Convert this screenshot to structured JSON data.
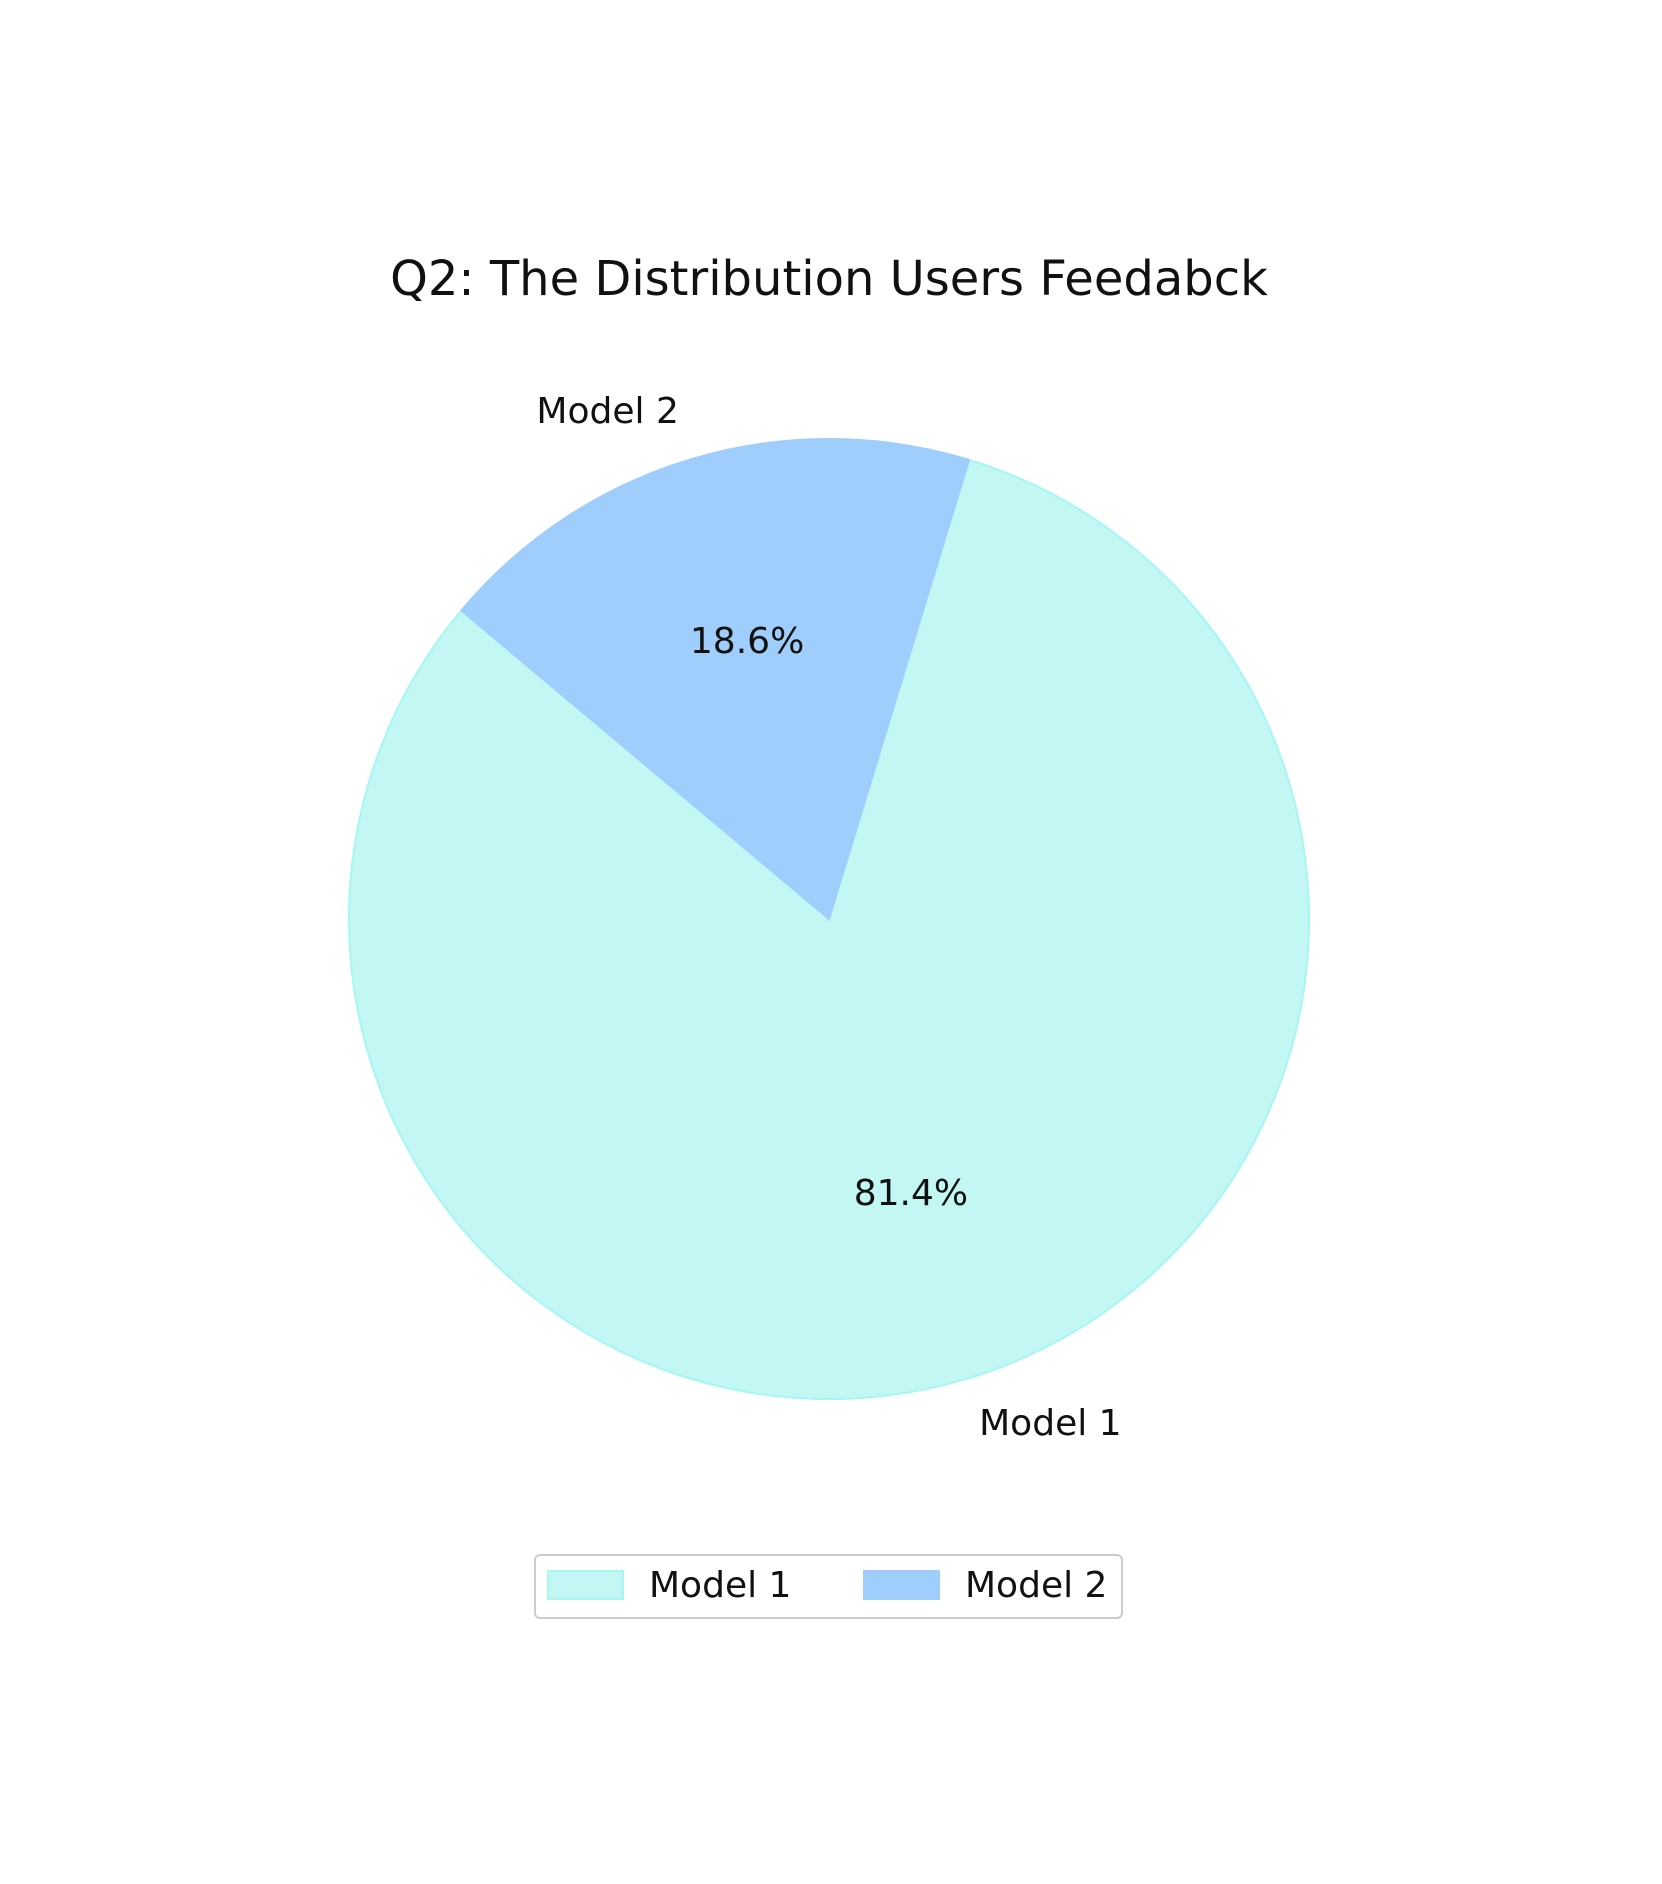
{
  "chart_data": {
    "type": "pie",
    "title": "Q2: The Distribution Users Feedabck",
    "categories": [
      "Model 1",
      "Model 2"
    ],
    "values": [
      81.4,
      18.6
    ],
    "value_labels": [
      "81.4%",
      "18.6%"
    ],
    "colors": [
      "#c2f7f4",
      "#a0cefc"
    ],
    "startangle": 140,
    "legend": "lower center"
  }
}
